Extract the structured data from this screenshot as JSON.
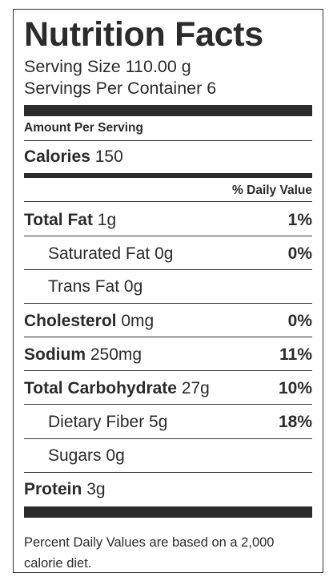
{
  "title": "Nutrition Facts",
  "serving_size": "Serving Size 110.00 g",
  "servings_per_container": "Servings Per Container 6",
  "amount_per_serving": "Amount Per Serving",
  "calories": {
    "label": "Calories",
    "value": "150"
  },
  "daily_value_header": "% Daily Value",
  "nutrients": [
    {
      "name": "Total Fat",
      "amount": "1g",
      "pct": "1%",
      "bold": true
    },
    {
      "name": "Saturated Fat",
      "amount": "0g",
      "pct": "0%",
      "bold": false
    },
    {
      "name": "Trans Fat",
      "amount": "0g",
      "pct": "",
      "bold": false
    },
    {
      "name": "Cholesterol",
      "amount": "0mg",
      "pct": "0%",
      "bold": true
    },
    {
      "name": "Sodium",
      "amount": "250mg",
      "pct": "11%",
      "bold": true
    },
    {
      "name": "Total Carbohydrate",
      "amount": "27g",
      "pct": "10%",
      "bold": true
    },
    {
      "name": "Dietary Fiber",
      "amount": "5g",
      "pct": "18%",
      "bold": false
    },
    {
      "name": "Sugars",
      "amount": "0g",
      "pct": "",
      "bold": false
    },
    {
      "name": "Protein",
      "amount": "3g",
      "pct": "",
      "bold": true
    }
  ],
  "footnote": "Percent Daily Values are based on a 2,000 calorie diet."
}
